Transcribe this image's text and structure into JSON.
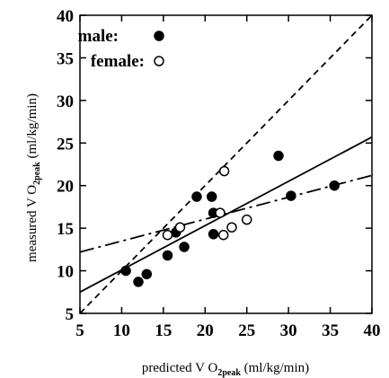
{
  "chart_data": {
    "type": "scatter",
    "title": "",
    "xlabel": {
      "prefix": "predicted V O",
      "subscript": "2peak",
      "suffix": " (ml/kg/min)"
    },
    "ylabel": {
      "prefix": "measured V O",
      "subscript": "2peak",
      "suffix": " (ml/kg/min)"
    },
    "xlim": [
      5,
      40
    ],
    "ylim": [
      5,
      40
    ],
    "xticks": [
      "5",
      "10",
      "15",
      "20",
      "25",
      "30",
      "35",
      "40"
    ],
    "yticks": [
      "5",
      "10",
      "15",
      "20",
      "25",
      "30",
      "35",
      "40"
    ],
    "grid": false,
    "legend_position": "top-left",
    "series": [
      {
        "name": "male:",
        "marker": "filled-circle",
        "color": "#000000",
        "points": [
          [
            10.5,
            10.0
          ],
          [
            12.0,
            8.7
          ],
          [
            13.0,
            9.6
          ],
          [
            15.5,
            11.8
          ],
          [
            16.5,
            14.5
          ],
          [
            17.5,
            12.8
          ],
          [
            19.0,
            18.7
          ],
          [
            20.8,
            18.7
          ],
          [
            21.0,
            16.8
          ],
          [
            21.0,
            14.3
          ],
          [
            28.8,
            23.5
          ],
          [
            30.3,
            18.8
          ],
          [
            35.5,
            20.0
          ]
        ]
      },
      {
        "name": "female:",
        "marker": "open-circle",
        "color": "#000000",
        "points": [
          [
            15.5,
            14.2
          ],
          [
            17.0,
            15.1
          ],
          [
            21.8,
            16.8
          ],
          [
            22.3,
            21.7
          ],
          [
            22.2,
            14.2
          ],
          [
            23.2,
            15.1
          ],
          [
            25.0,
            16.0
          ]
        ]
      }
    ],
    "lines": [
      {
        "kind": "identity",
        "style": "dashed",
        "from": [
          5,
          5
        ],
        "to": [
          40,
          40
        ]
      },
      {
        "kind": "regression",
        "style": "solid",
        "from": [
          5,
          7.5
        ],
        "to": [
          40,
          25.7
        ]
      },
      {
        "kind": "regression",
        "style": "dash-dot",
        "from": [
          5,
          12.2
        ],
        "to": [
          40,
          21.2
        ]
      }
    ]
  }
}
